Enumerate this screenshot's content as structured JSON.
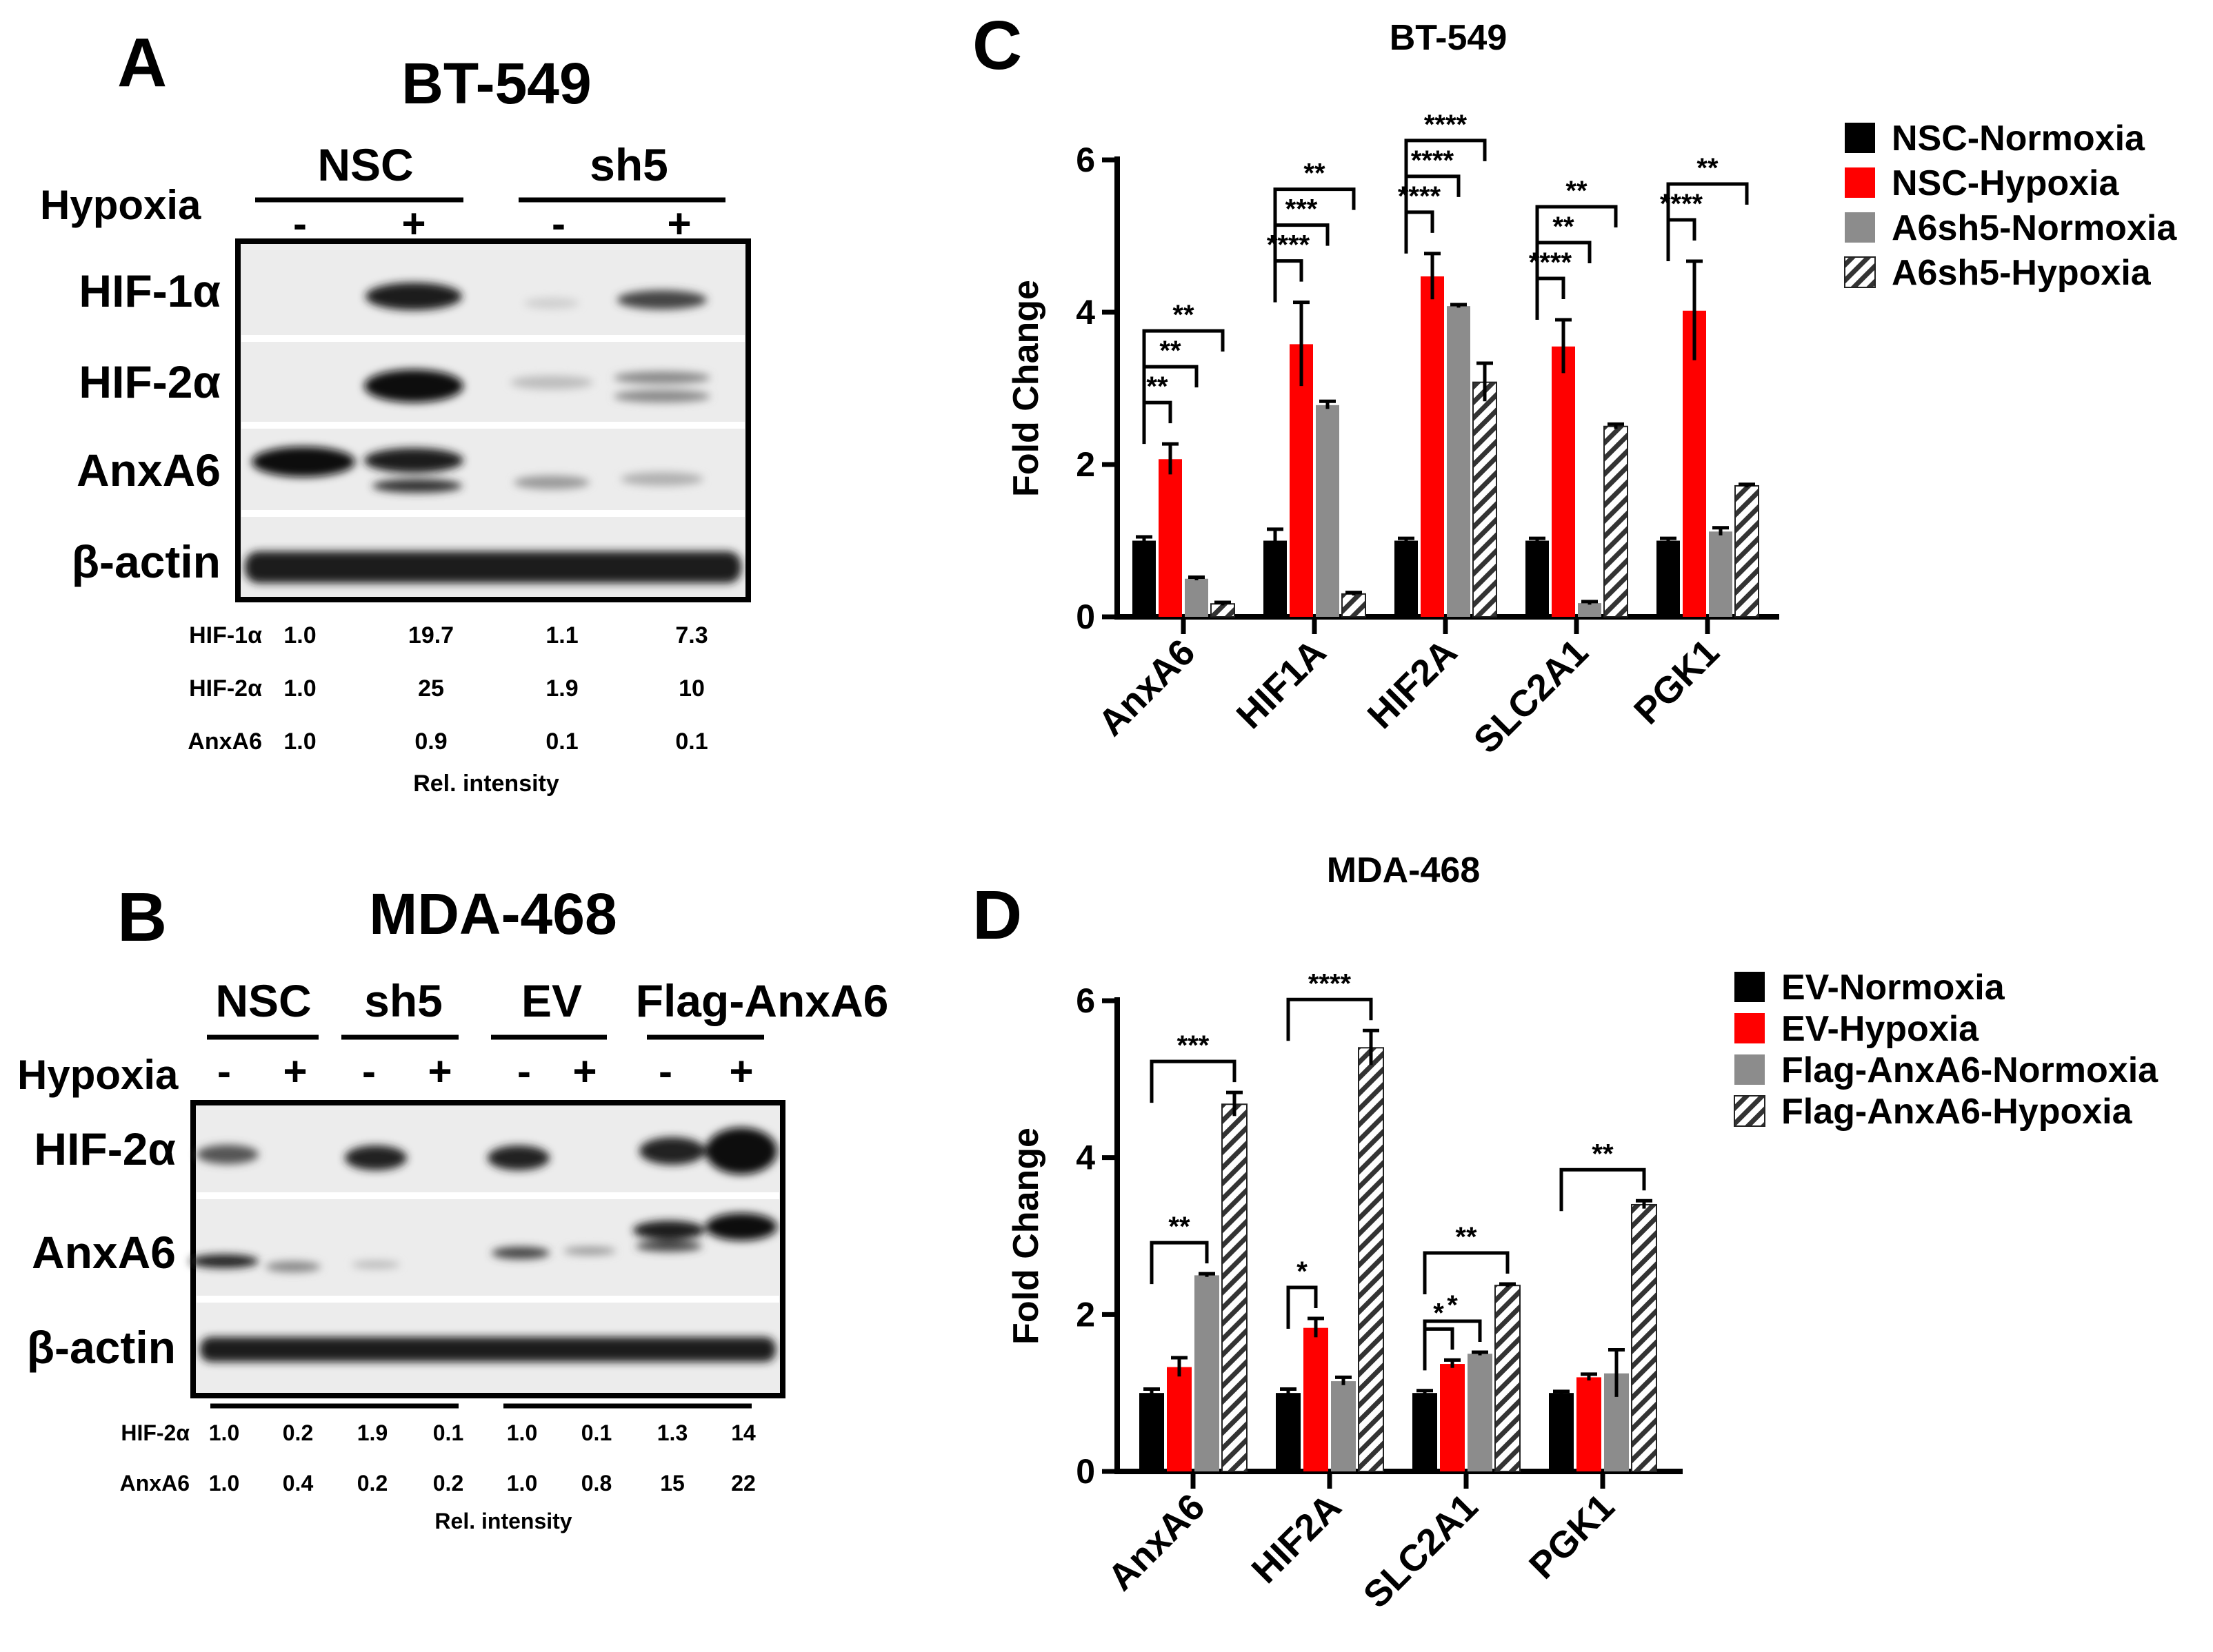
{
  "panel_labels": [
    "A",
    "B",
    "C",
    "D"
  ],
  "blot_A": {
    "title": "BT-549",
    "groups": [
      "NSC",
      "sh5"
    ],
    "hypoxia_label": "Hypoxia",
    "lanes": [
      "-",
      "+",
      "-",
      "+"
    ],
    "rows": [
      "HIF-1α",
      "HIF-2α",
      "AnxA6",
      "β-actin"
    ],
    "quant_rows": [
      {
        "label": "HIF-1α",
        "values": [
          "1.0",
          "19.7",
          "1.1",
          "7.3"
        ]
      },
      {
        "label": "HIF-2α",
        "values": [
          "1.0",
          "25",
          "1.9",
          "10"
        ]
      },
      {
        "label": "AnxA6",
        "values": [
          "1.0",
          "0.9",
          "0.1",
          "0.1"
        ]
      }
    ],
    "quant_caption": "Rel. intensity"
  },
  "blot_B": {
    "title": "MDA-468",
    "groups": [
      "NSC",
      "sh5",
      "EV",
      "Flag-AnxA6"
    ],
    "hypoxia_label": "Hypoxia",
    "lanes": [
      "-",
      "+",
      "-",
      "+",
      "-",
      "+",
      "-",
      "+"
    ],
    "rows": [
      "HIF-2α",
      "AnxA6",
      "β-actin"
    ],
    "quant_rows": [
      {
        "label": "HIF-2α",
        "values": [
          "1.0",
          "0.2",
          "1.9",
          "0.1",
          "1.0",
          "0.1",
          "1.3",
          "14"
        ]
      },
      {
        "label": "AnxA6",
        "values": [
          "1.0",
          "0.4",
          "0.2",
          "0.2",
          "1.0",
          "0.8",
          "15",
          "22"
        ]
      }
    ],
    "quant_caption": "Rel. intensity"
  },
  "colors": {
    "black": "#000000",
    "red": "#ff0000",
    "gray": "#8c8c8c",
    "hatch": "#ffffff"
  },
  "chart_data": [
    {
      "type": "bar",
      "title": "BT-549",
      "ylabel": "Fold Change",
      "xlabel": "",
      "ylim": [
        0,
        6
      ],
      "yticks": [
        0,
        2,
        4,
        6
      ],
      "categories": [
        "AnxA6",
        "HIF1A",
        "HIF2A",
        "SLC2A1",
        "PGK1"
      ],
      "series": [
        {
          "name": "NSC-Normoxia",
          "style": "black",
          "values": [
            1.0,
            1.0,
            1.0,
            1.0,
            1.0
          ],
          "errors": [
            0.05,
            0.15,
            0.03,
            0.03,
            0.03
          ]
        },
        {
          "name": "NSC-Hypoxia",
          "style": "red",
          "values": [
            2.07,
            3.58,
            4.47,
            3.55,
            4.02
          ],
          "errors": [
            0.2,
            0.55,
            0.3,
            0.35,
            0.65
          ]
        },
        {
          "name": "A6sh5-Normoxia",
          "style": "gray",
          "values": [
            0.5,
            2.78,
            4.08,
            0.18,
            1.12
          ],
          "errors": [
            0.02,
            0.05,
            0.02,
            0.02,
            0.05
          ]
        },
        {
          "name": "A6sh5-Hypoxia",
          "style": "hatch",
          "values": [
            0.17,
            0.3,
            3.08,
            2.5,
            1.72
          ],
          "errors": [
            0.02,
            0.02,
            0.25,
            0.03,
            0.02
          ]
        }
      ],
      "significance": [
        {
          "cat": 0,
          "from": 0,
          "to": 1,
          "label": "**"
        },
        {
          "cat": 0,
          "from": 0,
          "to": 2,
          "label": "**"
        },
        {
          "cat": 0,
          "from": 0,
          "to": 3,
          "label": "**"
        },
        {
          "cat": 1,
          "from": 0,
          "to": 1,
          "label": "****"
        },
        {
          "cat": 1,
          "from": 0,
          "to": 2,
          "label": "***"
        },
        {
          "cat": 1,
          "from": 0,
          "to": 3,
          "label": "**"
        },
        {
          "cat": 2,
          "from": 0,
          "to": 1,
          "label": "****"
        },
        {
          "cat": 2,
          "from": 0,
          "to": 2,
          "label": "****"
        },
        {
          "cat": 2,
          "from": 0,
          "to": 3,
          "label": "****"
        },
        {
          "cat": 3,
          "from": 0,
          "to": 1,
          "label": "****"
        },
        {
          "cat": 3,
          "from": 0,
          "to": 2,
          "label": "**"
        },
        {
          "cat": 3,
          "from": 0,
          "to": 3,
          "label": "**"
        },
        {
          "cat": 4,
          "from": 0,
          "to": 1,
          "label": "****"
        },
        {
          "cat": 4,
          "from": 0,
          "to": 3,
          "label": "**"
        }
      ]
    },
    {
      "type": "bar",
      "title": "MDA-468",
      "ylabel": "Fold Change",
      "xlabel": "",
      "ylim": [
        0,
        6
      ],
      "yticks": [
        0,
        2,
        4,
        6
      ],
      "categories": [
        "AnxA6",
        "HIF2A",
        "SLC2A1",
        "PGK1"
      ],
      "series": [
        {
          "name": "EV-Normoxia",
          "style": "black",
          "values": [
            1.0,
            1.0,
            1.0,
            1.0
          ],
          "errors": [
            0.05,
            0.05,
            0.03,
            0.02
          ]
        },
        {
          "name": "EV-Hypoxia",
          "style": "red",
          "values": [
            1.33,
            1.83,
            1.37,
            1.2
          ],
          "errors": [
            0.12,
            0.12,
            0.05,
            0.04
          ]
        },
        {
          "name": "Flag-AnxA6-Normoxia",
          "style": "gray",
          "values": [
            2.5,
            1.15,
            1.5,
            1.25
          ],
          "errors": [
            0.02,
            0.05,
            0.02,
            0.3
          ]
        },
        {
          "name": "Flag-AnxA6-Hypoxia",
          "style": "hatch",
          "values": [
            4.68,
            5.4,
            2.37,
            3.4
          ],
          "errors": [
            0.15,
            0.22,
            0.02,
            0.05
          ]
        }
      ],
      "significance": [
        {
          "cat": 0,
          "from": 0,
          "to": 2,
          "label": "**"
        },
        {
          "cat": 0,
          "from": 0,
          "to": 3,
          "label": "***"
        },
        {
          "cat": 1,
          "from": 0,
          "to": 1,
          "label": "*"
        },
        {
          "cat": 1,
          "from": 0,
          "to": 3,
          "label": "****"
        },
        {
          "cat": 2,
          "from": 0,
          "to": 1,
          "label": "*"
        },
        {
          "cat": 2,
          "from": 0,
          "to": 2,
          "label": "*"
        },
        {
          "cat": 2,
          "from": 0,
          "to": 3,
          "label": "**"
        },
        {
          "cat": 3,
          "from": 0,
          "to": 3,
          "label": "**"
        }
      ]
    }
  ]
}
